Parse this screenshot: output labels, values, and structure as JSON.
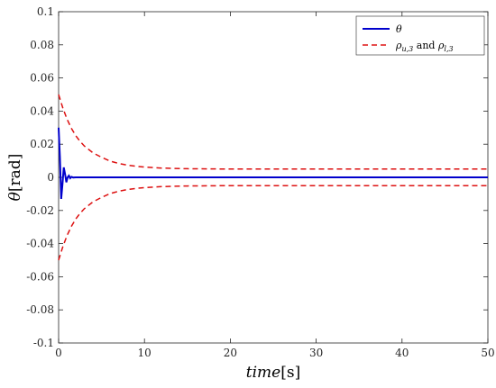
{
  "chart_data": {
    "type": "line",
    "title": "",
    "xlabel_italic": "time",
    "xlabel_unit": "[s]",
    "ylabel_symbol": "θ",
    "ylabel_unit": "[rad]",
    "xlim": [
      0,
      50
    ],
    "ylim": [
      -0.1,
      0.1
    ],
    "x_ticks": [
      0,
      10,
      20,
      30,
      40,
      50
    ],
    "x_tick_labels": [
      "0",
      "10",
      "20",
      "30",
      "40",
      "50"
    ],
    "y_ticks": [
      -0.1,
      -0.08,
      -0.06,
      -0.04,
      -0.02,
      0,
      0.02,
      0.04,
      0.06,
      0.08,
      0.1
    ],
    "y_tick_labels": [
      "-0.1",
      "-0.08",
      "-0.06",
      "-0.04",
      "-0.02",
      "0",
      "0.02",
      "0.04",
      "0.06",
      "0.08",
      "0.1"
    ],
    "grid": false,
    "legend_position": "top-right",
    "series": [
      {
        "name": "θ",
        "color": "#0000cc",
        "style": "solid",
        "x": [
          0,
          0.15,
          0.3,
          0.45,
          0.6,
          0.75,
          0.9,
          1.05,
          1.2,
          1.35,
          1.5,
          1.7,
          2.0,
          2.5,
          3,
          5,
          10,
          20,
          30,
          40,
          50
        ],
        "y": [
          0.03,
          0.012,
          -0.013,
          -0.004,
          0.006,
          0.002,
          -0.003,
          0.0,
          0.001,
          -0.0005,
          0.0003,
          -0.0001,
          0.0,
          0.0,
          0.0,
          0.0,
          0.0,
          0.0,
          0.0,
          0.0,
          0.0
        ]
      },
      {
        "name": "ρ_{u,3} and ρ_{l,3}",
        "color": "#dd1111",
        "style": "dashed",
        "x": [
          0,
          0.5,
          1,
          1.5,
          2,
          2.5,
          3,
          4,
          5,
          6,
          7,
          8,
          9,
          10,
          12,
          15,
          20,
          30,
          40,
          50
        ],
        "y_upper": [
          0.05,
          0.0417,
          0.0349,
          0.0295,
          0.0251,
          0.0217,
          0.0189,
          0.0148,
          0.0121,
          0.0098,
          0.0084,
          0.0074,
          0.0067,
          0.0062,
          0.0056,
          0.0052,
          0.005,
          0.005,
          0.005,
          0.005
        ],
        "y_lower": [
          -0.05,
          -0.0417,
          -0.0349,
          -0.0295,
          -0.0251,
          -0.0217,
          -0.0189,
          -0.0148,
          -0.0121,
          -0.0098,
          -0.0084,
          -0.0074,
          -0.0067,
          -0.0062,
          -0.0056,
          -0.0052,
          -0.005,
          -0.005,
          -0.005,
          -0.005
        ]
      }
    ]
  }
}
